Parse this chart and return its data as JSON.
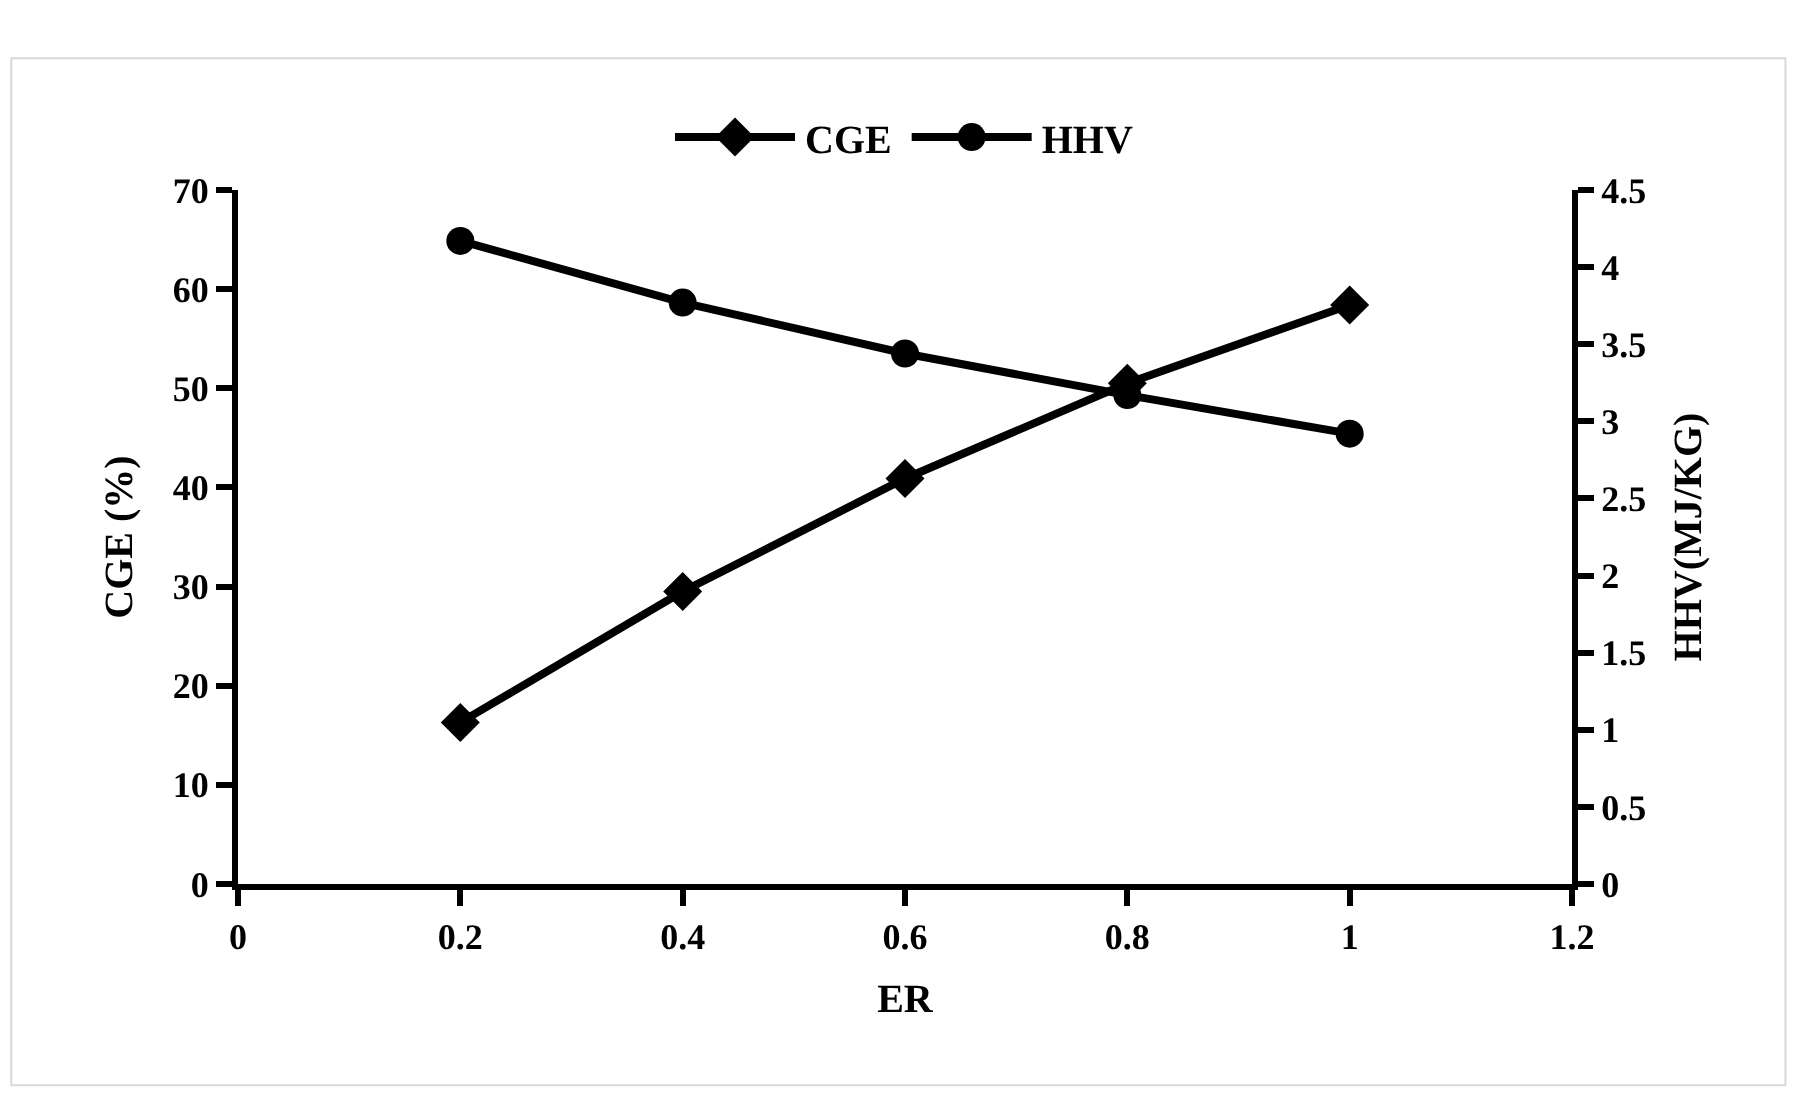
{
  "chart_data": {
    "type": "line",
    "xlabel": "ER",
    "ylabel": "CGE (%)",
    "y2label": "HHV(MJ/KG)",
    "x": [
      0.2,
      0.4,
      0.6,
      0.8,
      1
    ],
    "series": [
      {
        "name": "CGE",
        "color": "#000000",
        "marker": "diamond",
        "values": [
          16.3,
          29.5,
          40.9,
          50.5,
          58.4
        ]
      },
      {
        "name": "HHV",
        "color": "#000000",
        "marker": "circle",
        "axis": "y2",
        "values": [
          4.17,
          3.77,
          3.44,
          3.17,
          2.92
        ]
      }
    ],
    "xlim": [
      0,
      1.2
    ],
    "xticks": [
      0,
      0.2,
      0.4,
      0.6,
      0.8,
      1,
      1.2
    ],
    "ylim": [
      0,
      70
    ],
    "yticks": [
      0,
      10,
      20,
      30,
      40,
      50,
      60,
      70
    ],
    "y2lim": [
      0,
      4.5
    ],
    "y2ticks": [
      0,
      0.5,
      1,
      1.5,
      2,
      2.5,
      3,
      3.5,
      4,
      4.5
    ],
    "legend": "top",
    "line_style": "solid"
  }
}
